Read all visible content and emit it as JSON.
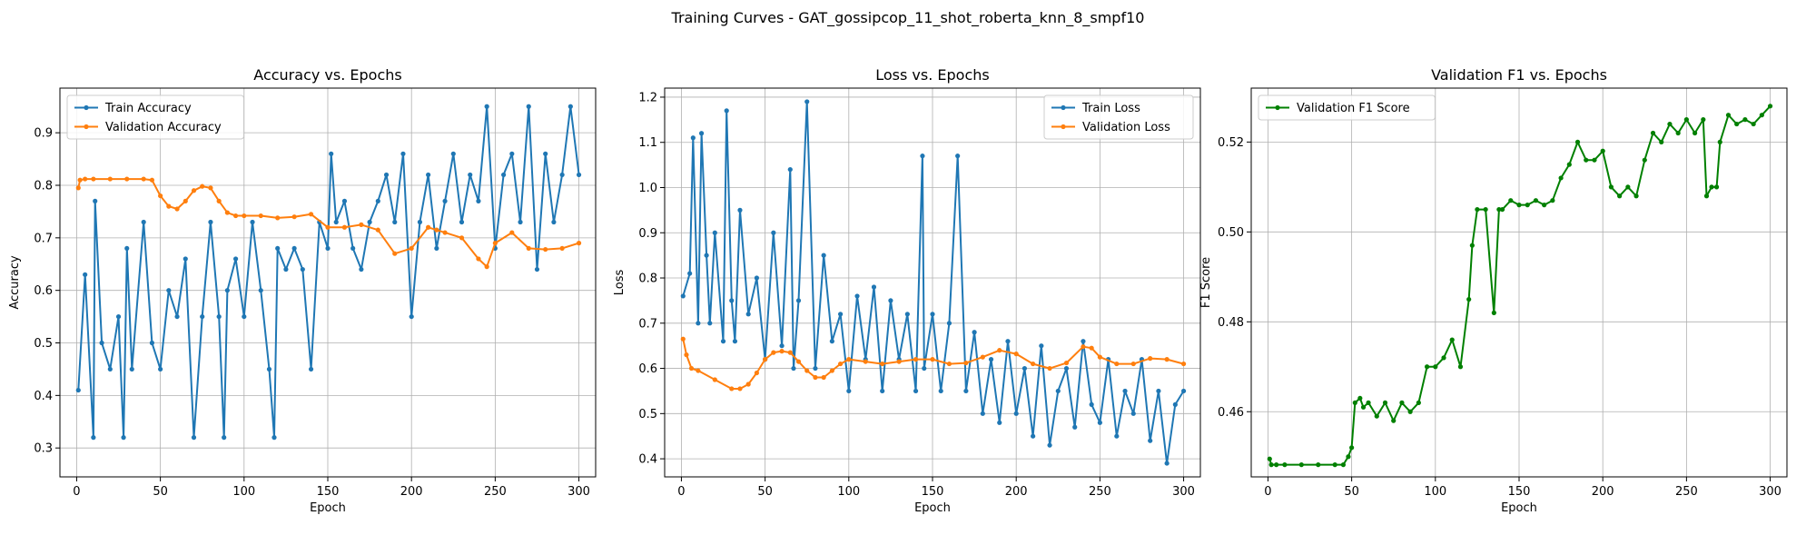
{
  "figure": {
    "title": "Training Curves - GAT_gossipcop_11_shot_roberta_knn_8_smpf10"
  },
  "colors": {
    "blue": "#1f77b4",
    "orange": "#ff7f0e",
    "green": "#008000",
    "grid": "#b0b0b0"
  },
  "chart_data": [
    {
      "type": "line",
      "title": "Accuracy vs. Epochs",
      "xlabel": "Epoch",
      "ylabel": "Accuracy",
      "xlim": [
        -10,
        310
      ],
      "ylim": [
        0.245,
        0.985
      ],
      "xticks": [
        0,
        50,
        100,
        150,
        200,
        250,
        300
      ],
      "yticks": [
        0.3,
        0.4,
        0.5,
        0.6,
        0.7,
        0.8,
        0.9
      ],
      "grid": true,
      "legend": "upper left",
      "series": [
        {
          "name": "Train Accuracy",
          "color": "#1f77b4",
          "marker": "o",
          "x": [
            1,
            5,
            10,
            11,
            15,
            20,
            25,
            28,
            30,
            33,
            40,
            45,
            50,
            55,
            60,
            65,
            70,
            75,
            80,
            85,
            88,
            90,
            95,
            100,
            105,
            110,
            115,
            118,
            120,
            125,
            130,
            135,
            140,
            145,
            150,
            152,
            155,
            160,
            165,
            170,
            175,
            180,
            185,
            190,
            195,
            200,
            205,
            210,
            215,
            220,
            225,
            230,
            235,
            240,
            245,
            250,
            255,
            260,
            265,
            270,
            275,
            280,
            285,
            290,
            295,
            300
          ],
          "y": [
            0.41,
            0.63,
            0.32,
            0.77,
            0.5,
            0.45,
            0.55,
            0.32,
            0.68,
            0.45,
            0.73,
            0.5,
            0.45,
            0.6,
            0.55,
            0.66,
            0.32,
            0.55,
            0.73,
            0.55,
            0.32,
            0.6,
            0.66,
            0.55,
            0.73,
            0.6,
            0.45,
            0.32,
            0.68,
            0.64,
            0.68,
            0.64,
            0.45,
            0.73,
            0.68,
            0.86,
            0.73,
            0.77,
            0.68,
            0.64,
            0.73,
            0.77,
            0.82,
            0.73,
            0.86,
            0.55,
            0.73,
            0.82,
            0.68,
            0.77,
            0.86,
            0.73,
            0.82,
            0.77,
            0.95,
            0.68,
            0.82,
            0.86,
            0.73,
            0.95,
            0.64,
            0.86,
            0.73,
            0.82,
            0.95,
            0.82
          ]
        },
        {
          "name": "Validation Accuracy",
          "color": "#ff7f0e",
          "marker": "o",
          "x": [
            1,
            2,
            5,
            10,
            20,
            30,
            40,
            45,
            50,
            55,
            60,
            65,
            70,
            75,
            80,
            85,
            90,
            95,
            100,
            110,
            120,
            130,
            140,
            150,
            160,
            170,
            180,
            190,
            200,
            210,
            215,
            220,
            230,
            240,
            245,
            250,
            260,
            270,
            280,
            290,
            300
          ],
          "y": [
            0.795,
            0.81,
            0.812,
            0.812,
            0.812,
            0.812,
            0.812,
            0.81,
            0.78,
            0.76,
            0.755,
            0.77,
            0.79,
            0.798,
            0.795,
            0.77,
            0.748,
            0.742,
            0.742,
            0.742,
            0.738,
            0.74,
            0.745,
            0.72,
            0.72,
            0.725,
            0.715,
            0.67,
            0.68,
            0.72,
            0.715,
            0.71,
            0.7,
            0.66,
            0.645,
            0.69,
            0.71,
            0.68,
            0.678,
            0.68,
            0.69
          ]
        }
      ]
    },
    {
      "type": "line",
      "title": "Loss vs. Epochs",
      "xlabel": "Epoch",
      "ylabel": "Loss",
      "xlim": [
        -10,
        310
      ],
      "ylim": [
        0.36,
        1.22
      ],
      "xticks": [
        0,
        50,
        100,
        150,
        200,
        250,
        300
      ],
      "yticks": [
        0.4,
        0.5,
        0.6,
        0.7,
        0.8,
        0.9,
        1.0,
        1.1,
        1.2
      ],
      "grid": true,
      "legend": "upper right",
      "series": [
        {
          "name": "Train Loss",
          "color": "#1f77b4",
          "marker": "o",
          "x": [
            1,
            5,
            7,
            10,
            12,
            15,
            17,
            20,
            25,
            27,
            30,
            32,
            35,
            40,
            45,
            50,
            55,
            60,
            65,
            67,
            70,
            75,
            80,
            85,
            90,
            95,
            100,
            105,
            110,
            115,
            120,
            125,
            130,
            135,
            140,
            144,
            145,
            150,
            155,
            160,
            165,
            170,
            175,
            180,
            185,
            190,
            195,
            200,
            205,
            210,
            215,
            220,
            225,
            230,
            235,
            240,
            245,
            250,
            255,
            260,
            265,
            270,
            275,
            280,
            285,
            290,
            295,
            300
          ],
          "y": [
            0.76,
            0.81,
            1.11,
            0.7,
            1.12,
            0.85,
            0.7,
            0.9,
            0.66,
            1.17,
            0.75,
            0.66,
            0.95,
            0.72,
            0.8,
            0.62,
            0.9,
            0.65,
            1.04,
            0.6,
            0.75,
            1.19,
            0.6,
            0.85,
            0.66,
            0.72,
            0.55,
            0.76,
            0.62,
            0.78,
            0.55,
            0.75,
            0.62,
            0.72,
            0.55,
            1.07,
            0.6,
            0.72,
            0.55,
            0.7,
            1.07,
            0.55,
            0.68,
            0.5,
            0.62,
            0.48,
            0.66,
            0.5,
            0.6,
            0.45,
            0.65,
            0.43,
            0.55,
            0.6,
            0.47,
            0.66,
            0.52,
            0.48,
            0.62,
            0.45,
            0.55,
            0.5,
            0.62,
            0.44,
            0.55,
            0.39,
            0.52,
            0.55
          ]
        },
        {
          "name": "Validation Loss",
          "color": "#ff7f0e",
          "marker": "o",
          "x": [
            1,
            3,
            6,
            10,
            20,
            30,
            35,
            40,
            45,
            50,
            55,
            60,
            65,
            70,
            75,
            80,
            85,
            90,
            95,
            100,
            110,
            120,
            130,
            140,
            150,
            160,
            170,
            180,
            190,
            200,
            210,
            220,
            230,
            240,
            245,
            250,
            260,
            270,
            280,
            290,
            300
          ],
          "y": [
            0.665,
            0.63,
            0.6,
            0.595,
            0.575,
            0.555,
            0.555,
            0.565,
            0.59,
            0.62,
            0.635,
            0.638,
            0.635,
            0.615,
            0.595,
            0.58,
            0.58,
            0.595,
            0.61,
            0.62,
            0.615,
            0.61,
            0.615,
            0.62,
            0.62,
            0.61,
            0.612,
            0.625,
            0.64,
            0.632,
            0.61,
            0.6,
            0.612,
            0.648,
            0.645,
            0.625,
            0.61,
            0.61,
            0.622,
            0.62,
            0.61
          ]
        }
      ]
    },
    {
      "type": "line",
      "title": "Validation F1 vs. Epochs",
      "xlabel": "Epoch",
      "ylabel": "F1 Score",
      "xlim": [
        -10,
        310
      ],
      "ylim": [
        0.4455,
        0.532
      ],
      "xticks": [
        0,
        50,
        100,
        150,
        200,
        250,
        300
      ],
      "yticks": [
        0.46,
        0.48,
        0.5,
        0.52
      ],
      "grid": true,
      "legend": "upper left",
      "series": [
        {
          "name": "Validation F1 Score",
          "color": "#008000",
          "marker": "o",
          "x": [
            1,
            2,
            5,
            10,
            20,
            30,
            40,
            45,
            48,
            50,
            52,
            55,
            57,
            60,
            65,
            70,
            75,
            80,
            85,
            90,
            95,
            100,
            105,
            110,
            115,
            120,
            122,
            125,
            130,
            135,
            138,
            140,
            145,
            150,
            155,
            160,
            165,
            170,
            175,
            180,
            185,
            190,
            195,
            200,
            205,
            210,
            215,
            220,
            225,
            230,
            235,
            240,
            245,
            250,
            255,
            260,
            262,
            265,
            268,
            270,
            275,
            280,
            285,
            290,
            295,
            300
          ],
          "y": [
            0.4495,
            0.4482,
            0.4482,
            0.4482,
            0.4482,
            0.4482,
            0.4482,
            0.4482,
            0.45,
            0.452,
            0.462,
            0.463,
            0.461,
            0.462,
            0.459,
            0.462,
            0.458,
            0.462,
            0.46,
            0.462,
            0.47,
            0.47,
            0.472,
            0.476,
            0.47,
            0.485,
            0.497,
            0.505,
            0.505,
            0.482,
            0.505,
            0.505,
            0.507,
            0.506,
            0.506,
            0.507,
            0.506,
            0.507,
            0.512,
            0.515,
            0.52,
            0.516,
            0.516,
            0.518,
            0.51,
            0.508,
            0.51,
            0.508,
            0.516,
            0.522,
            0.52,
            0.524,
            0.522,
            0.525,
            0.522,
            0.525,
            0.508,
            0.51,
            0.51,
            0.52,
            0.526,
            0.524,
            0.525,
            0.524,
            0.526,
            0.528
          ]
        }
      ]
    }
  ]
}
